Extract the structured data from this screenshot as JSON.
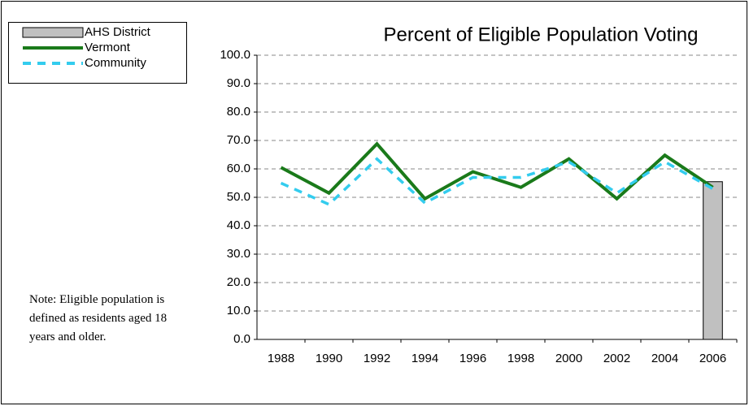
{
  "chart_data": {
    "type": "combo",
    "title": "Percent of Eligible Population Voting",
    "note": "Note: Eligible population is defined as residents aged 18 years and older.",
    "categories": [
      "1988",
      "1990",
      "1992",
      "1994",
      "1996",
      "1998",
      "2000",
      "2002",
      "2004",
      "2006"
    ],
    "series": [
      {
        "name": "AHS District",
        "type": "bar",
        "color": "#c0c0c0",
        "values": [
          null,
          null,
          null,
          null,
          null,
          null,
          null,
          null,
          null,
          55.5
        ]
      },
      {
        "name": "Vermont",
        "type": "line",
        "color": "#1a7a1a",
        "values": [
          60.5,
          51.5,
          68.8,
          49.5,
          59.0,
          53.5,
          63.5,
          49.5,
          64.8,
          53.5
        ]
      },
      {
        "name": "Community",
        "type": "line",
        "dashed": true,
        "color": "#33ccee",
        "values": [
          55.0,
          47.5,
          63.5,
          48.0,
          57.0,
          57.0,
          62.5,
          51.5,
          62.5,
          53.0
        ]
      }
    ],
    "ylim": [
      0,
      100
    ],
    "yticks": [
      {
        "value": 0,
        "label": "0.0"
      },
      {
        "value": 10,
        "label": "10.0"
      },
      {
        "value": 20,
        "label": "20.0"
      },
      {
        "value": 30,
        "label": "30.0"
      },
      {
        "value": 40,
        "label": "40.0"
      },
      {
        "value": 50,
        "label": "50.0"
      },
      {
        "value": 60,
        "label": "60.0"
      },
      {
        "value": 70,
        "label": "70.0"
      },
      {
        "value": 80,
        "label": "80.0"
      },
      {
        "value": 90,
        "label": "90.0"
      },
      {
        "value": 100,
        "label": "100.0"
      }
    ],
    "grid": true,
    "legend": "top-left"
  }
}
